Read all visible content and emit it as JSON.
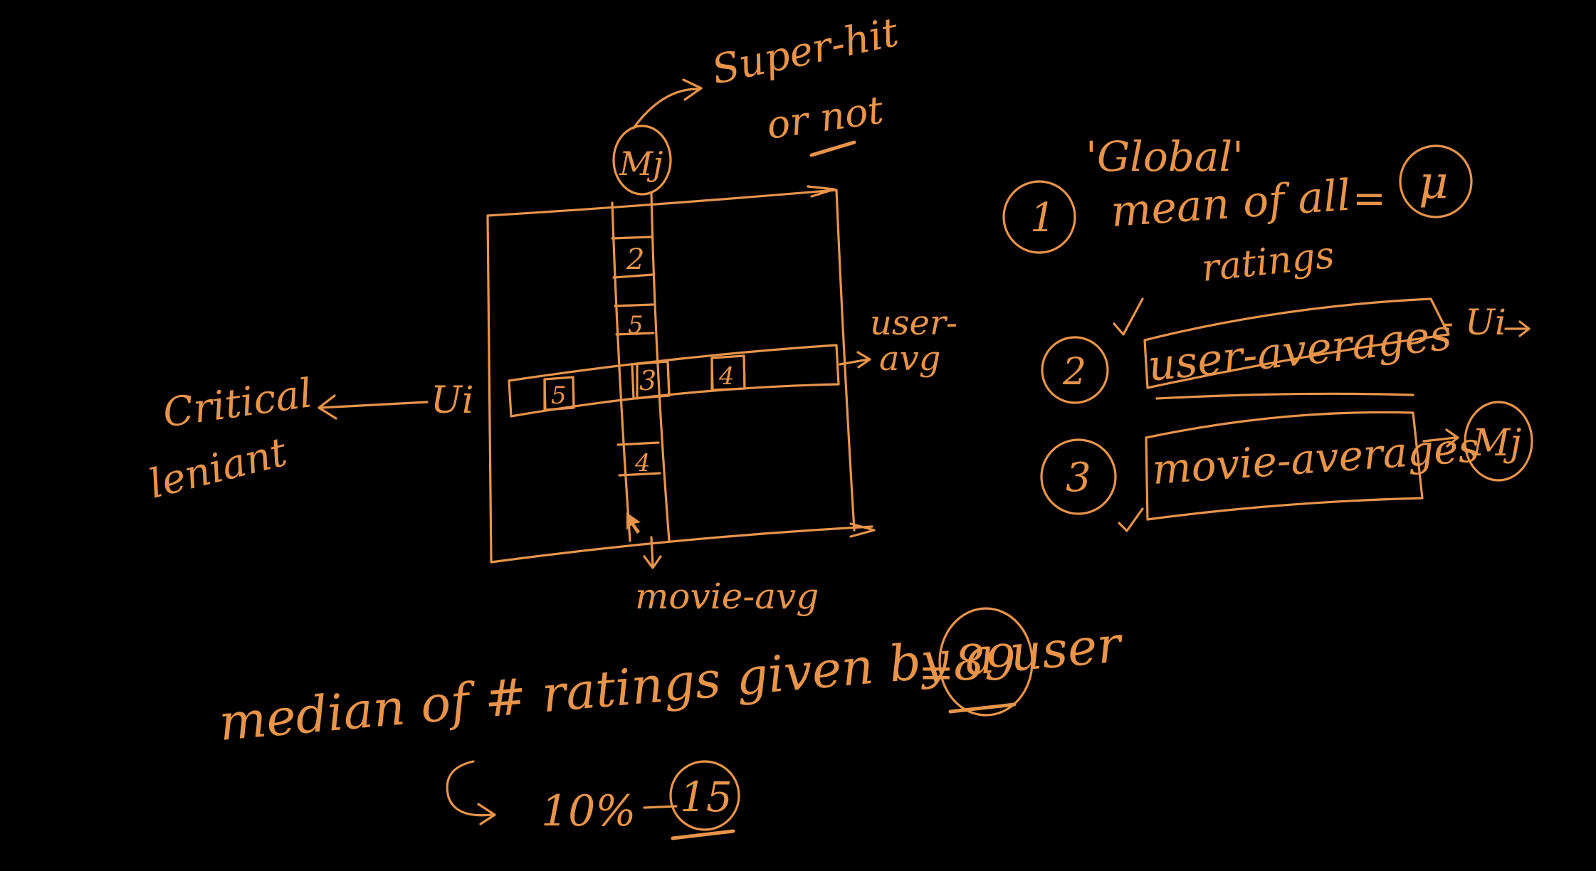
{
  "colors": {
    "background": "#000000",
    "ink": "#e8944a"
  },
  "matrix": {
    "column_label": "Mj",
    "row_label": "Ui",
    "column_cells": [
      "2",
      "5",
      "4"
    ],
    "row_cells": [
      "5",
      "4"
    ],
    "center_cell": "3",
    "user_avg_label_1": "user-",
    "user_avg_label_2": "avg",
    "movie_avg_label": "movie-avg"
  },
  "movie_note": {
    "line1": "Super-hit",
    "line2": "or not"
  },
  "user_note": {
    "line1": "Critical",
    "line2": "leniant"
  },
  "global": {
    "title": "'Global'",
    "item1_num": "1",
    "item1_text": "mean of all",
    "item1_text2": "ratings",
    "item1_eq": "=",
    "item1_symbol": "μ",
    "item2_num": "2",
    "item2_text": "user-averages",
    "item2_arrow_text": "- Ui",
    "item3_num": "3",
    "item3_text": "movie-averages",
    "item3_symbol": "Mj"
  },
  "median": {
    "text": "median of # ratings given by a user",
    "eq": "=",
    "value": "89",
    "percent": "10%",
    "result": "15"
  }
}
